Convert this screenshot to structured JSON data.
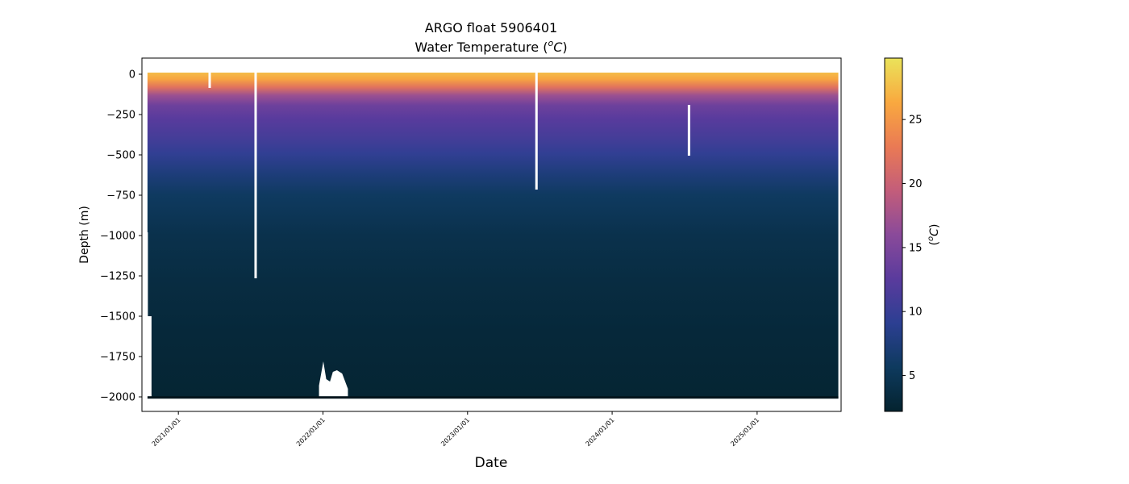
{
  "chart_data": {
    "type": "heatmap",
    "title": "ARGO float 5906401",
    "subtitle_text": "Water Temperature (",
    "subtitle_sup": "o",
    "subtitle_unit": "C",
    "subtitle_close": ")",
    "xlabel": "Date",
    "ylabel": "Depth (m)",
    "colorbar_label_open": "(",
    "colorbar_label_sup": "o",
    "colorbar_label_unit": "C",
    "colorbar_label_close": ")",
    "colormap": "thermal",
    "colormap_stops": [
      "#04232f",
      "#0e3a5e",
      "#2c3f92",
      "#5a3b9d",
      "#8a4a9a",
      "#c35d7a",
      "#ea7a54",
      "#f9a93f",
      "#eae35a"
    ],
    "x_range": [
      "2020-10-01",
      "2025-08-01"
    ],
    "y_range": [
      -2090,
      100
    ],
    "x_ticks": [
      "2021/01/01",
      "2022/01/01",
      "2023/01/01",
      "2024/01/01",
      "2025/01/01"
    ],
    "y_ticks": [
      0,
      -250,
      -500,
      -750,
      -1000,
      -1250,
      -1500,
      -1750,
      -2000
    ],
    "y_tick_labels": [
      "0",
      "−250",
      "−500",
      "−750",
      "−1000",
      "−1250",
      "−1500",
      "−1750",
      "−2000"
    ],
    "colorbar_range": [
      2.2,
      29.8
    ],
    "colorbar_ticks": [
      5,
      10,
      15,
      20,
      25
    ],
    "colorbar_tick_labels": [
      "5",
      "10",
      "15",
      "20",
      "25"
    ],
    "data_start": "2020-10-15",
    "data_end": "2025-07-25",
    "surface_temperature_range": [
      25,
      29.5
    ],
    "deep_temperature_range": [
      2.3,
      3.0
    ],
    "profile_depth_max": -2000,
    "early_profile_depth_max": -1500,
    "gaps": [
      {
        "date": "2021-03-21",
        "depth_top": 0,
        "depth_bottom": -85
      },
      {
        "date": "2021-07-15",
        "depth_top": 0,
        "depth_bottom": -1265
      },
      {
        "date": "2023-06-24",
        "depth_top": 0,
        "depth_bottom": -715
      },
      {
        "date": "2024-07-13",
        "depth_top": -205,
        "depth_bottom": -505
      }
    ],
    "shallow_profiles_window": [
      "2021-12-22",
      "2022-03-05"
    ],
    "shallow_profiles_depth": [
      -1780,
      -1925
    ]
  }
}
